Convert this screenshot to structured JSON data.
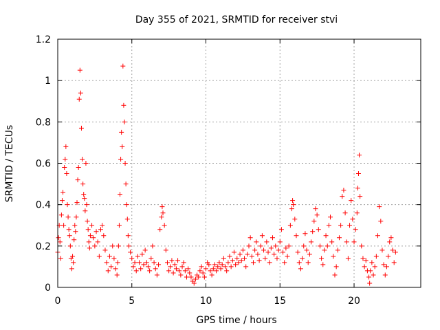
{
  "chart_data": {
    "type": "scatter",
    "title": "Day 355 of 2021, SRMTID for receiver stvi",
    "xlabel": "GPS time / hours",
    "ylabel": "SRMTID / TECUs",
    "xlim": [
      0,
      24.5
    ],
    "ylim": [
      0,
      1.2
    ],
    "xticks": [
      0,
      5,
      10,
      15,
      20
    ],
    "xtick_labels": [
      "0",
      "5",
      "10",
      "15",
      "20"
    ],
    "yticks": [
      0,
      0.2,
      0.4,
      0.6,
      0.8,
      1.0,
      1.2
    ],
    "ytick_labels": [
      "0",
      "0.2",
      "0.4",
      "0.6",
      "0.8",
      "1",
      "1.2"
    ],
    "grid": true,
    "marker": "+",
    "series": [
      {
        "name": "SRMTID",
        "color": "#ff0000",
        "points": [
          [
            0.0,
            0.17
          ],
          [
            0.05,
            0.24
          ],
          [
            0.1,
            0.3
          ],
          [
            0.15,
            0.22
          ],
          [
            0.2,
            0.14
          ],
          [
            0.25,
            0.35
          ],
          [
            0.3,
            0.42
          ],
          [
            0.35,
            0.46
          ],
          [
            0.4,
            0.3
          ],
          [
            0.45,
            0.58
          ],
          [
            0.5,
            0.62
          ],
          [
            0.55,
            0.68
          ],
          [
            0.6,
            0.55
          ],
          [
            0.65,
            0.4
          ],
          [
            0.7,
            0.34
          ],
          [
            0.75,
            0.28
          ],
          [
            0.8,
            0.25
          ],
          [
            0.85,
            0.2
          ],
          [
            0.9,
            0.14
          ],
          [
            0.95,
            0.09
          ],
          [
            1.0,
            0.15
          ],
          [
            1.05,
            0.12
          ],
          [
            1.1,
            0.23
          ],
          [
            1.15,
            0.3
          ],
          [
            1.2,
            0.27
          ],
          [
            1.25,
            0.34
          ],
          [
            1.3,
            0.41
          ],
          [
            1.35,
            0.52
          ],
          [
            1.4,
            0.58
          ],
          [
            1.45,
            0.91
          ],
          [
            1.5,
            1.05
          ],
          [
            1.55,
            0.94
          ],
          [
            1.6,
            0.77
          ],
          [
            1.65,
            0.62
          ],
          [
            1.7,
            0.5
          ],
          [
            1.75,
            0.45
          ],
          [
            1.8,
            0.43
          ],
          [
            1.85,
            0.37
          ],
          [
            1.9,
            0.6
          ],
          [
            1.95,
            0.4
          ],
          [
            2.0,
            0.32
          ],
          [
            2.05,
            0.28
          ],
          [
            2.1,
            0.22
          ],
          [
            2.15,
            0.19
          ],
          [
            2.2,
            0.25
          ],
          [
            2.3,
            0.3
          ],
          [
            2.4,
            0.24
          ],
          [
            2.5,
            0.2
          ],
          [
            2.6,
            0.27
          ],
          [
            2.7,
            0.22
          ],
          [
            2.8,
            0.15
          ],
          [
            2.9,
            0.28
          ],
          [
            3.0,
            0.3
          ],
          [
            3.1,
            0.25
          ],
          [
            3.2,
            0.18
          ],
          [
            3.3,
            0.12
          ],
          [
            3.4,
            0.08
          ],
          [
            3.5,
            0.15
          ],
          [
            3.6,
            0.1
          ],
          [
            3.7,
            0.2
          ],
          [
            3.8,
            0.14
          ],
          [
            3.9,
            0.09
          ],
          [
            4.0,
            0.06
          ],
          [
            4.05,
            0.12
          ],
          [
            4.1,
            0.2
          ],
          [
            4.15,
            0.3
          ],
          [
            4.2,
            0.45
          ],
          [
            4.25,
            0.62
          ],
          [
            4.3,
            0.75
          ],
          [
            4.35,
            0.68
          ],
          [
            4.4,
            1.07
          ],
          [
            4.45,
            0.88
          ],
          [
            4.5,
            0.8
          ],
          [
            4.55,
            0.6
          ],
          [
            4.6,
            0.5
          ],
          [
            4.65,
            0.4
          ],
          [
            4.7,
            0.33
          ],
          [
            4.75,
            0.25
          ],
          [
            4.8,
            0.2
          ],
          [
            4.9,
            0.17
          ],
          [
            5.0,
            0.14
          ],
          [
            5.1,
            0.1
          ],
          [
            5.2,
            0.12
          ],
          [
            5.3,
            0.08
          ],
          [
            5.4,
            0.15
          ],
          [
            5.5,
            0.12
          ],
          [
            5.6,
            0.09
          ],
          [
            5.7,
            0.16
          ],
          [
            5.8,
            0.11
          ],
          [
            5.9,
            0.18
          ],
          [
            6.0,
            0.12
          ],
          [
            6.1,
            0.1
          ],
          [
            6.2,
            0.08
          ],
          [
            6.3,
            0.14
          ],
          [
            6.4,
            0.2
          ],
          [
            6.5,
            0.12
          ],
          [
            6.6,
            0.09
          ],
          [
            6.7,
            0.06
          ],
          [
            6.8,
            0.11
          ],
          [
            6.9,
            0.28
          ],
          [
            7.0,
            0.34
          ],
          [
            7.05,
            0.39
          ],
          [
            7.1,
            0.36
          ],
          [
            7.2,
            0.3
          ],
          [
            7.3,
            0.18
          ],
          [
            7.4,
            0.12
          ],
          [
            7.5,
            0.08
          ],
          [
            7.6,
            0.1
          ],
          [
            7.7,
            0.13
          ],
          [
            7.8,
            0.07
          ],
          [
            7.9,
            0.11
          ],
          [
            8.0,
            0.09
          ],
          [
            8.1,
            0.13
          ],
          [
            8.2,
            0.08
          ],
          [
            8.3,
            0.06
          ],
          [
            8.4,
            0.1
          ],
          [
            8.5,
            0.12
          ],
          [
            8.6,
            0.08
          ],
          [
            8.7,
            0.05
          ],
          [
            8.8,
            0.09
          ],
          [
            8.9,
            0.07
          ],
          [
            9.0,
            0.05
          ],
          [
            9.1,
            0.03
          ],
          [
            9.2,
            0.02
          ],
          [
            9.3,
            0.04
          ],
          [
            9.4,
            0.06
          ],
          [
            9.5,
            0.05
          ],
          [
            9.6,
            0.08
          ],
          [
            9.7,
            0.1
          ],
          [
            9.8,
            0.07
          ],
          [
            9.9,
            0.05
          ],
          [
            10.0,
            0.09
          ],
          [
            10.1,
            0.12
          ],
          [
            10.2,
            0.11
          ],
          [
            10.3,
            0.08
          ],
          [
            10.4,
            0.06
          ],
          [
            10.5,
            0.09
          ],
          [
            10.6,
            0.11
          ],
          [
            10.7,
            0.08
          ],
          [
            10.8,
            0.1
          ],
          [
            10.9,
            0.12
          ],
          [
            11.0,
            0.09
          ],
          [
            11.1,
            0.11
          ],
          [
            11.2,
            0.14
          ],
          [
            11.3,
            0.1
          ],
          [
            11.4,
            0.08
          ],
          [
            11.5,
            0.12
          ],
          [
            11.6,
            0.15
          ],
          [
            11.7,
            0.1
          ],
          [
            11.8,
            0.13
          ],
          [
            11.9,
            0.17
          ],
          [
            12.0,
            0.11
          ],
          [
            12.1,
            0.14
          ],
          [
            12.2,
            0.12
          ],
          [
            12.3,
            0.16
          ],
          [
            12.4,
            0.13
          ],
          [
            12.5,
            0.18
          ],
          [
            12.6,
            0.14
          ],
          [
            12.7,
            0.1
          ],
          [
            12.8,
            0.16
          ],
          [
            12.9,
            0.2
          ],
          [
            13.0,
            0.24
          ],
          [
            13.1,
            0.15
          ],
          [
            13.2,
            0.12
          ],
          [
            13.3,
            0.18
          ],
          [
            13.4,
            0.22
          ],
          [
            13.5,
            0.16
          ],
          [
            13.6,
            0.13
          ],
          [
            13.7,
            0.2
          ],
          [
            13.8,
            0.25
          ],
          [
            13.9,
            0.18
          ],
          [
            14.0,
            0.14
          ],
          [
            14.1,
            0.22
          ],
          [
            14.2,
            0.17
          ],
          [
            14.3,
            0.12
          ],
          [
            14.4,
            0.19
          ],
          [
            14.5,
            0.24
          ],
          [
            14.6,
            0.16
          ],
          [
            14.7,
            0.2
          ],
          [
            14.8,
            0.14
          ],
          [
            14.9,
            0.18
          ],
          [
            15.0,
            0.22
          ],
          [
            15.1,
            0.28
          ],
          [
            15.2,
            0.17
          ],
          [
            15.3,
            0.12
          ],
          [
            15.4,
            0.19
          ],
          [
            15.5,
            0.15
          ],
          [
            15.6,
            0.2
          ],
          [
            15.7,
            0.3
          ],
          [
            15.8,
            0.38
          ],
          [
            15.85,
            0.42
          ],
          [
            15.9,
            0.4
          ],
          [
            16.0,
            0.33
          ],
          [
            16.1,
            0.25
          ],
          [
            16.2,
            0.17
          ],
          [
            16.3,
            0.12
          ],
          [
            16.4,
            0.09
          ],
          [
            16.5,
            0.14
          ],
          [
            16.6,
            0.2
          ],
          [
            16.7,
            0.26
          ],
          [
            16.8,
            0.18
          ],
          [
            16.9,
            0.12
          ],
          [
            17.0,
            0.16
          ],
          [
            17.1,
            0.22
          ],
          [
            17.2,
            0.27
          ],
          [
            17.3,
            0.32
          ],
          [
            17.4,
            0.38
          ],
          [
            17.5,
            0.35
          ],
          [
            17.6,
            0.28
          ],
          [
            17.7,
            0.2
          ],
          [
            17.8,
            0.14
          ],
          [
            17.9,
            0.11
          ],
          [
            18.0,
            0.18
          ],
          [
            18.1,
            0.25
          ],
          [
            18.2,
            0.2
          ],
          [
            18.3,
            0.3
          ],
          [
            18.4,
            0.34
          ],
          [
            18.5,
            0.22
          ],
          [
            18.6,
            0.15
          ],
          [
            18.7,
            0.06
          ],
          [
            18.8,
            0.1
          ],
          [
            18.9,
            0.18
          ],
          [
            19.0,
            0.24
          ],
          [
            19.1,
            0.3
          ],
          [
            19.2,
            0.44
          ],
          [
            19.3,
            0.47
          ],
          [
            19.4,
            0.36
          ],
          [
            19.5,
            0.22
          ],
          [
            19.6,
            0.14
          ],
          [
            19.7,
            0.3
          ],
          [
            19.8,
            0.42
          ],
          [
            19.9,
            0.33
          ],
          [
            20.0,
            0.22
          ],
          [
            20.1,
            0.28
          ],
          [
            20.2,
            0.36
          ],
          [
            20.25,
            0.48
          ],
          [
            20.3,
            0.55
          ],
          [
            20.35,
            0.64
          ],
          [
            20.4,
            0.44
          ],
          [
            20.5,
            0.2
          ],
          [
            20.6,
            0.14
          ],
          [
            20.7,
            0.1
          ],
          [
            20.8,
            0.13
          ],
          [
            20.9,
            0.08
          ],
          [
            21.0,
            0.05
          ],
          [
            21.05,
            0.02
          ],
          [
            21.1,
            0.08
          ],
          [
            21.2,
            0.12
          ],
          [
            21.3,
            0.06
          ],
          [
            21.4,
            0.1
          ],
          [
            21.5,
            0.15
          ],
          [
            21.6,
            0.25
          ],
          [
            21.7,
            0.39
          ],
          [
            21.8,
            0.32
          ],
          [
            21.9,
            0.18
          ],
          [
            22.0,
            0.11
          ],
          [
            22.1,
            0.06
          ],
          [
            22.2,
            0.1
          ],
          [
            22.3,
            0.15
          ],
          [
            22.4,
            0.22
          ],
          [
            22.5,
            0.24
          ],
          [
            22.6,
            0.18
          ],
          [
            22.7,
            0.12
          ],
          [
            22.8,
            0.17
          ]
        ]
      }
    ]
  }
}
